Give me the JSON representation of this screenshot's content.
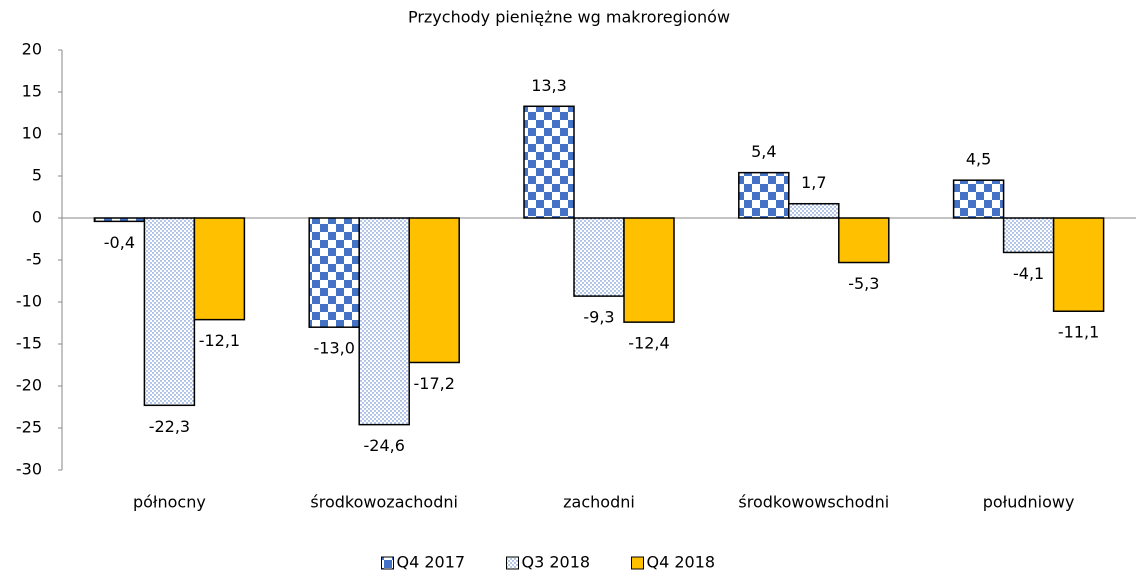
{
  "chart_data": {
    "type": "bar",
    "title": "Przychody pieniężne wg makroregionów",
    "categories": [
      "północny",
      "środkowozachodni",
      "zachodni",
      "środkowowschodni",
      "południowy"
    ],
    "series": [
      {
        "name": "Q4 2017",
        "color": "#4472c4",
        "pattern": "checker",
        "values": [
          -0.4,
          -13.0,
          13.3,
          5.4,
          4.5
        ],
        "value_labels": [
          "-0,4",
          "-13,0",
          "13,3",
          "5,4",
          "4,5"
        ]
      },
      {
        "name": "Q3 2018",
        "color": "#4472c4",
        "pattern": "dots",
        "values": [
          -22.3,
          -24.6,
          -9.3,
          1.7,
          -4.1
        ],
        "value_labels": [
          "-22,3",
          "-24,6",
          "-9,3",
          "1,7",
          "-4,1"
        ]
      },
      {
        "name": "Q4 2018",
        "color": "#ffc000",
        "pattern": "solid",
        "values": [
          -12.1,
          -17.2,
          -12.4,
          -5.3,
          -11.1
        ],
        "value_labels": [
          "-12,1",
          "-17,2",
          "-12,4",
          "-5,3",
          "-11,1"
        ]
      }
    ],
    "ylim": [
      -30,
      20
    ],
    "yticks": [
      -30,
      -25,
      -20,
      -15,
      -10,
      -5,
      0,
      5,
      10,
      15,
      20
    ],
    "grid": false,
    "legend": "bottom"
  }
}
